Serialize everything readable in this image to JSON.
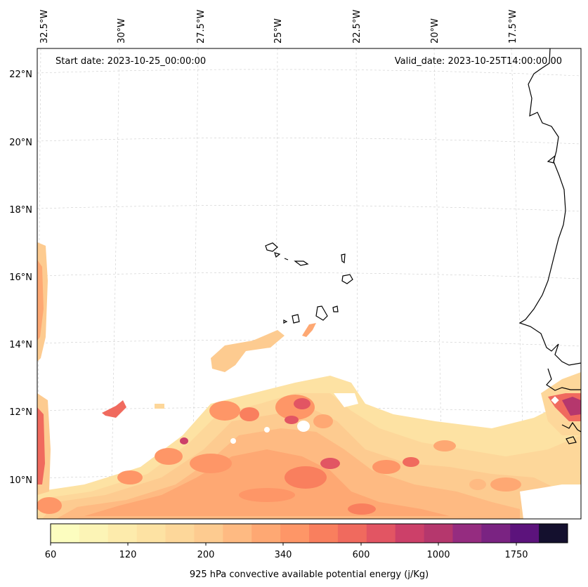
{
  "header": {
    "start_date": "Start date: 2023-10-25_00:00:00",
    "valid_date": "Valid_date: 2023-10-25T14:00:00.00"
  },
  "lon_labels": [
    "32.5°W",
    "30°W",
    "27.5°W",
    "25°W",
    "22.5°W",
    "20°W",
    "17.5°W"
  ],
  "lat_labels": [
    "22°N",
    "20°N",
    "18°N",
    "16°N",
    "14°N",
    "12°N",
    "10°N"
  ],
  "colorbar": {
    "title": "925 hPa convective available potential energy (j/Kg)",
    "tick_labels": [
      "60",
      "120",
      "200",
      "340",
      "600",
      "1000",
      "1750"
    ],
    "colors": [
      "#fcfdbf",
      "#fcf4b6",
      "#fdebac",
      "#fde2a3",
      "#fdd79a",
      "#fdcb90",
      "#feba82",
      "#fea873",
      "#fe9667",
      "#f97f5e",
      "#f06a5e",
      "#e25563",
      "#cc4069",
      "#b5376d",
      "#952c80",
      "#7a2382",
      "#5c137c",
      "#14102e"
    ]
  },
  "map": {
    "region": "Eastern tropical Atlantic / West Africa",
    "colormap": "magma_r",
    "gridlines": true
  }
}
